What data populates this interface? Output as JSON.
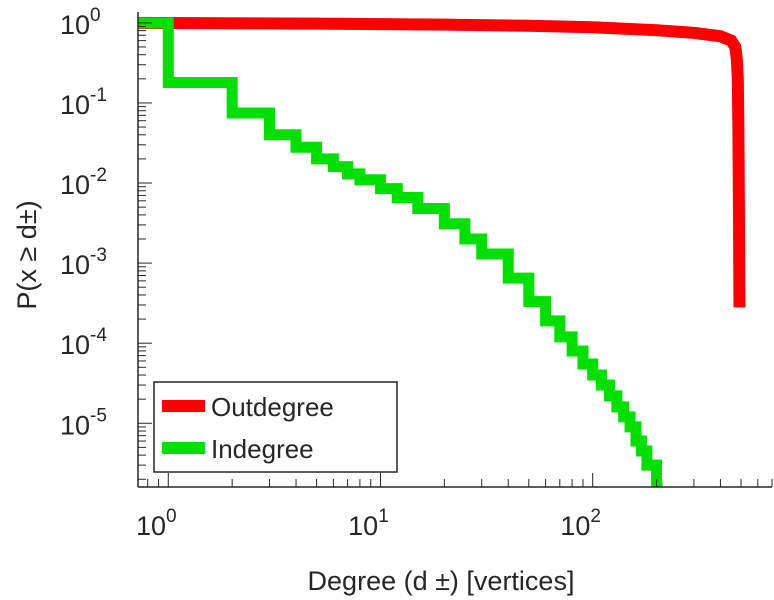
{
  "chart_data": {
    "type": "line",
    "title": "",
    "xlabel": "Degree (d  ±) [vertices]",
    "ylabel": "P(x ≥ d±)",
    "x_scale": "log",
    "y_scale": "log",
    "xlim": [
      0.72,
      700
    ],
    "ylim": [
      1.6e-06,
      1.15
    ],
    "grid": false,
    "legend_position": "bottom-left",
    "x_ticks": [
      {
        "base": "10",
        "exp": "0",
        "value": 1
      },
      {
        "base": "10",
        "exp": "1",
        "value": 10
      },
      {
        "base": "10",
        "exp": "2",
        "value": 100
      }
    ],
    "y_ticks": [
      {
        "base": "10",
        "exp": "0",
        "value": 1
      },
      {
        "base": "10",
        "exp": "-1",
        "value": 0.1
      },
      {
        "base": "10",
        "exp": "-2",
        "value": 0.01
      },
      {
        "base": "10",
        "exp": "-3",
        "value": 0.001
      },
      {
        "base": "10",
        "exp": "-4",
        "value": 0.0001
      },
      {
        "base": "10",
        "exp": "-5",
        "value": 1e-05
      }
    ],
    "series": [
      {
        "name": "Outdegree",
        "color": "#ff0000",
        "style": "line",
        "x": [
          0.72,
          5,
          20,
          50,
          100,
          200,
          300,
          400,
          450,
          470,
          478,
          483,
          486,
          488,
          490,
          491,
          492
        ],
        "y": [
          1.0,
          0.98,
          0.95,
          0.92,
          0.88,
          0.81,
          0.75,
          0.68,
          0.6,
          0.5,
          0.35,
          0.2,
          0.05,
          0.01,
          0.002,
          0.0006,
          0.00028
        ]
      },
      {
        "name": "Indegree",
        "color": "#00e000",
        "style": "step",
        "x": [
          0.72,
          1,
          2,
          3,
          4,
          5,
          6,
          7,
          8,
          10,
          12,
          15,
          20,
          25,
          30,
          40,
          50,
          60,
          70,
          80,
          90,
          100,
          110,
          120,
          130,
          140,
          150,
          160,
          170,
          180,
          200
        ],
        "y": [
          1.0,
          0.18,
          0.075,
          0.04,
          0.028,
          0.02,
          0.016,
          0.013,
          0.011,
          0.0085,
          0.0066,
          0.0048,
          0.0031,
          0.002,
          0.0013,
          0.00065,
          0.00033,
          0.00019,
          0.00012,
          8e-05,
          5.5e-05,
          4e-05,
          3e-05,
          2.2e-05,
          1.6e-05,
          1.2e-05,
          9e-06,
          6e-06,
          4.5e-06,
          3e-06,
          1.6e-06
        ]
      }
    ]
  }
}
